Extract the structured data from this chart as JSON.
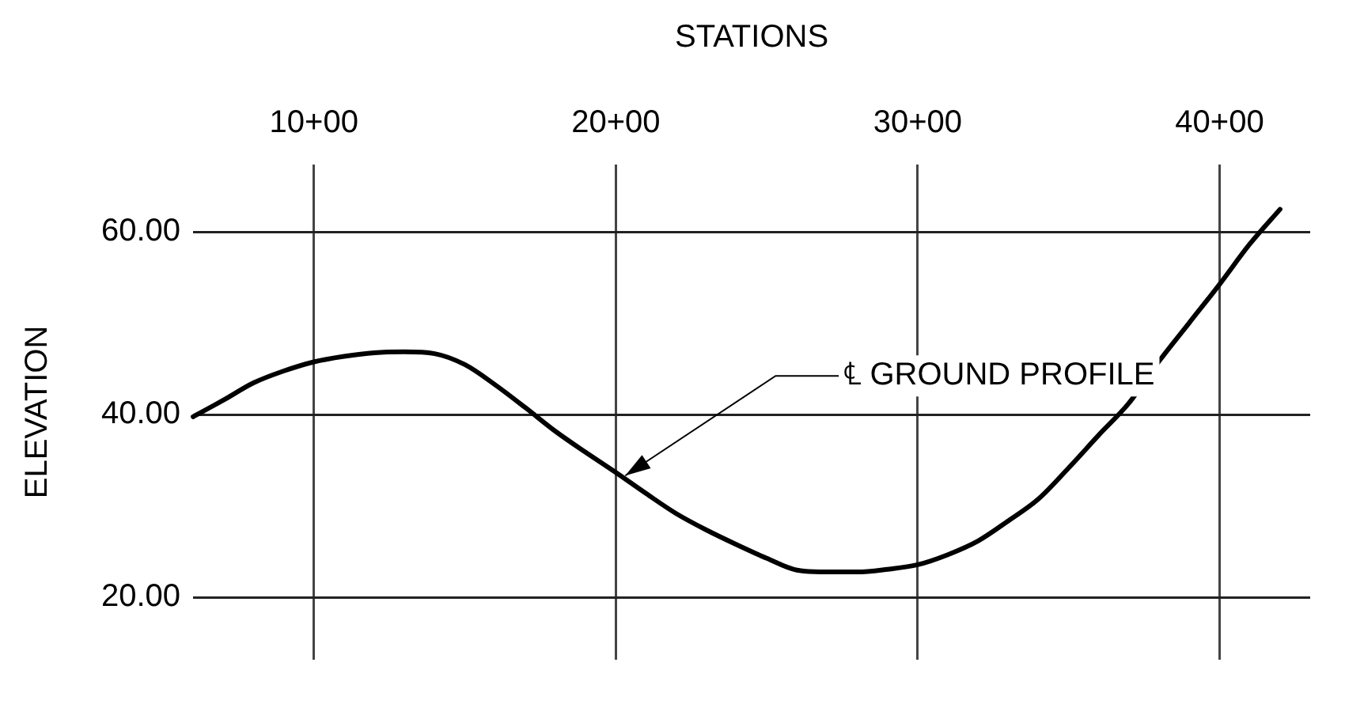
{
  "chart_data": {
    "type": "line",
    "xlabel": "STATIONS",
    "ylabel": "ELEVATION",
    "categories": [
      null,
      null,
      null,
      null,
      "10+00",
      null,
      null,
      null,
      null,
      null,
      null,
      null,
      null,
      null,
      "20+00",
      null,
      null,
      null,
      null,
      null,
      null,
      null,
      null,
      null,
      "30+00",
      null,
      null,
      null,
      null,
      null,
      null,
      null,
      null,
      null,
      "40+00",
      null,
      null,
      null
    ],
    "ylim": [
      13.2,
      67.4
    ],
    "yticks": [
      {
        "value": 20,
        "label": "20.00"
      },
      {
        "value": 40,
        "label": "40.00"
      },
      {
        "value": 60,
        "label": "60.00"
      }
    ],
    "grid": true,
    "marker": "none",
    "line_style": "solid",
    "annotations": [
      {
        "text": "℄ GROUND PROFILE",
        "x": "20+00",
        "y": 33.7
      }
    ],
    "series": [
      {
        "color": "#000000",
        "values": [
          39.8,
          41.6,
          43.5,
          44.8,
          45.8,
          46.4,
          46.8,
          46.9,
          46.7,
          45.5,
          43.3,
          40.8,
          38.2,
          35.9,
          33.7,
          31.4,
          29.2,
          27.4,
          25.8,
          24.3,
          23.0,
          22.8,
          22.8,
          23.1,
          23.6,
          24.7,
          26.2,
          28.4,
          30.8,
          34.2,
          37.8,
          41.3,
          45.9,
          50.1,
          54.3,
          58.7,
          62.5,
          null
        ]
      }
    ]
  }
}
